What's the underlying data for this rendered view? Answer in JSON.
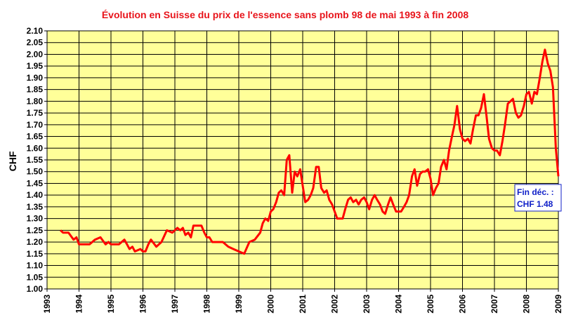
{
  "chart_data": {
    "type": "line",
    "title": "Évolution en Suisse du prix de l'essence sans plomb 98 de mai 1993 à fin 2008",
    "xlabel": "",
    "ylabel": "CHF",
    "xlim": [
      1993,
      2009
    ],
    "ylim": [
      1.0,
      2.1
    ],
    "ystep": 0.05,
    "x_ticks": [
      "1993",
      "1994",
      "1995",
      "1996",
      "1997",
      "1998",
      "1999",
      "2000",
      "2001",
      "2002",
      "2003",
      "2004",
      "2005",
      "2006",
      "2007",
      "2008",
      "2009"
    ],
    "y_ticks": [
      "1.00",
      "1.05",
      "1.10",
      "1.15",
      "1.20",
      "1.25",
      "1.30",
      "1.35",
      "1.40",
      "1.45",
      "1.50",
      "1.55",
      "1.60",
      "1.65",
      "1.70",
      "1.75",
      "1.80",
      "1.85",
      "1.90",
      "1.95",
      "2.00",
      "2.05",
      "2.10"
    ],
    "grid": true,
    "colors": {
      "plot_bg": "#ffff99",
      "line": "#ff0000",
      "title": "#e8141b",
      "annotation": "#1020c8"
    },
    "annotation": {
      "line1": "Fin déc. :",
      "line2": "CHF 1.48"
    },
    "series": [
      {
        "x": [
          1993.42,
          1993.5,
          1993.67,
          1993.83,
          1993.92,
          1994.0,
          1994.08,
          1994.33,
          1994.5,
          1994.67,
          1994.83,
          1994.92,
          1995.0,
          1995.08,
          1995.25,
          1995.42,
          1995.5,
          1995.58,
          1995.67,
          1995.75,
          1995.92,
          1996.0,
          1996.08,
          1996.17,
          1996.25,
          1996.42,
          1996.5,
          1996.58,
          1996.75,
          1996.92,
          1997.0,
          1997.08,
          1997.17,
          1997.25,
          1997.33,
          1997.42,
          1997.5,
          1997.58,
          1997.67,
          1997.83,
          1997.92,
          1998.0,
          1998.08,
          1998.17,
          1998.33,
          1998.5,
          1998.67,
          1998.83,
          1999.0,
          1999.17,
          1999.33,
          1999.5,
          1999.67,
          1999.75,
          1999.83,
          1999.92,
          2000.0,
          2000.08,
          2000.17,
          2000.25,
          2000.33,
          2000.42,
          2000.5,
          2000.58,
          2000.67,
          2000.75,
          2000.83,
          2000.92,
          2001.0,
          2001.08,
          2001.17,
          2001.25,
          2001.33,
          2001.42,
          2001.5,
          2001.58,
          2001.67,
          2001.75,
          2001.83,
          2001.92,
          2002.0,
          2002.08,
          2002.25,
          2002.33,
          2002.42,
          2002.5,
          2002.58,
          2002.67,
          2002.75,
          2002.83,
          2002.92,
          2003.0,
          2003.08,
          2003.17,
          2003.25,
          2003.33,
          2003.42,
          2003.5,
          2003.58,
          2003.67,
          2003.75,
          2003.83,
          2003.92,
          2004.0,
          2004.08,
          2004.17,
          2004.25,
          2004.33,
          2004.42,
          2004.5,
          2004.58,
          2004.67,
          2004.75,
          2004.83,
          2004.92,
          2005.0,
          2005.08,
          2005.17,
          2005.25,
          2005.33,
          2005.42,
          2005.5,
          2005.58,
          2005.67,
          2005.75,
          2005.83,
          2005.92,
          2006.0,
          2006.08,
          2006.17,
          2006.25,
          2006.33,
          2006.42,
          2006.5,
          2006.58,
          2006.67,
          2006.75,
          2006.83,
          2006.92,
          2007.0,
          2007.08,
          2007.17,
          2007.25,
          2007.33,
          2007.42,
          2007.5,
          2007.58,
          2007.67,
          2007.75,
          2007.83,
          2007.92,
          2008.0,
          2008.08,
          2008.17,
          2008.25,
          2008.33,
          2008.42,
          2008.5,
          2008.58,
          2008.67,
          2008.75,
          2008.83,
          2008.92,
          2009.0
        ],
        "y": [
          1.25,
          1.24,
          1.24,
          1.21,
          1.22,
          1.19,
          1.19,
          1.19,
          1.21,
          1.22,
          1.19,
          1.2,
          1.19,
          1.19,
          1.19,
          1.21,
          1.19,
          1.17,
          1.18,
          1.16,
          1.17,
          1.16,
          1.16,
          1.19,
          1.21,
          1.18,
          1.19,
          1.2,
          1.25,
          1.24,
          1.25,
          1.26,
          1.25,
          1.26,
          1.23,
          1.24,
          1.22,
          1.27,
          1.27,
          1.27,
          1.24,
          1.22,
          1.22,
          1.2,
          1.2,
          1.2,
          1.18,
          1.17,
          1.16,
          1.15,
          1.2,
          1.21,
          1.24,
          1.28,
          1.3,
          1.29,
          1.33,
          1.34,
          1.37,
          1.41,
          1.42,
          1.4,
          1.55,
          1.57,
          1.41,
          1.5,
          1.48,
          1.51,
          1.44,
          1.37,
          1.38,
          1.4,
          1.43,
          1.52,
          1.52,
          1.43,
          1.41,
          1.42,
          1.38,
          1.36,
          1.33,
          1.3,
          1.3,
          1.34,
          1.38,
          1.39,
          1.37,
          1.38,
          1.36,
          1.38,
          1.39,
          1.37,
          1.34,
          1.38,
          1.4,
          1.38,
          1.36,
          1.33,
          1.32,
          1.36,
          1.39,
          1.36,
          1.33,
          1.33,
          1.33,
          1.35,
          1.37,
          1.4,
          1.48,
          1.51,
          1.44,
          1.49,
          1.5,
          1.5,
          1.51,
          1.47,
          1.4,
          1.43,
          1.45,
          1.52,
          1.55,
          1.51,
          1.59,
          1.65,
          1.7,
          1.78,
          1.68,
          1.64,
          1.63,
          1.64,
          1.62,
          1.68,
          1.74,
          1.74,
          1.77,
          1.83,
          1.74,
          1.64,
          1.6,
          1.59,
          1.59,
          1.57,
          1.63,
          1.7,
          1.79,
          1.8,
          1.81,
          1.75,
          1.73,
          1.74,
          1.78,
          1.83,
          1.84,
          1.79,
          1.84,
          1.83,
          1.9,
          1.97,
          2.02,
          1.96,
          1.93,
          1.86,
          1.6,
          1.48
        ]
      }
    ]
  }
}
